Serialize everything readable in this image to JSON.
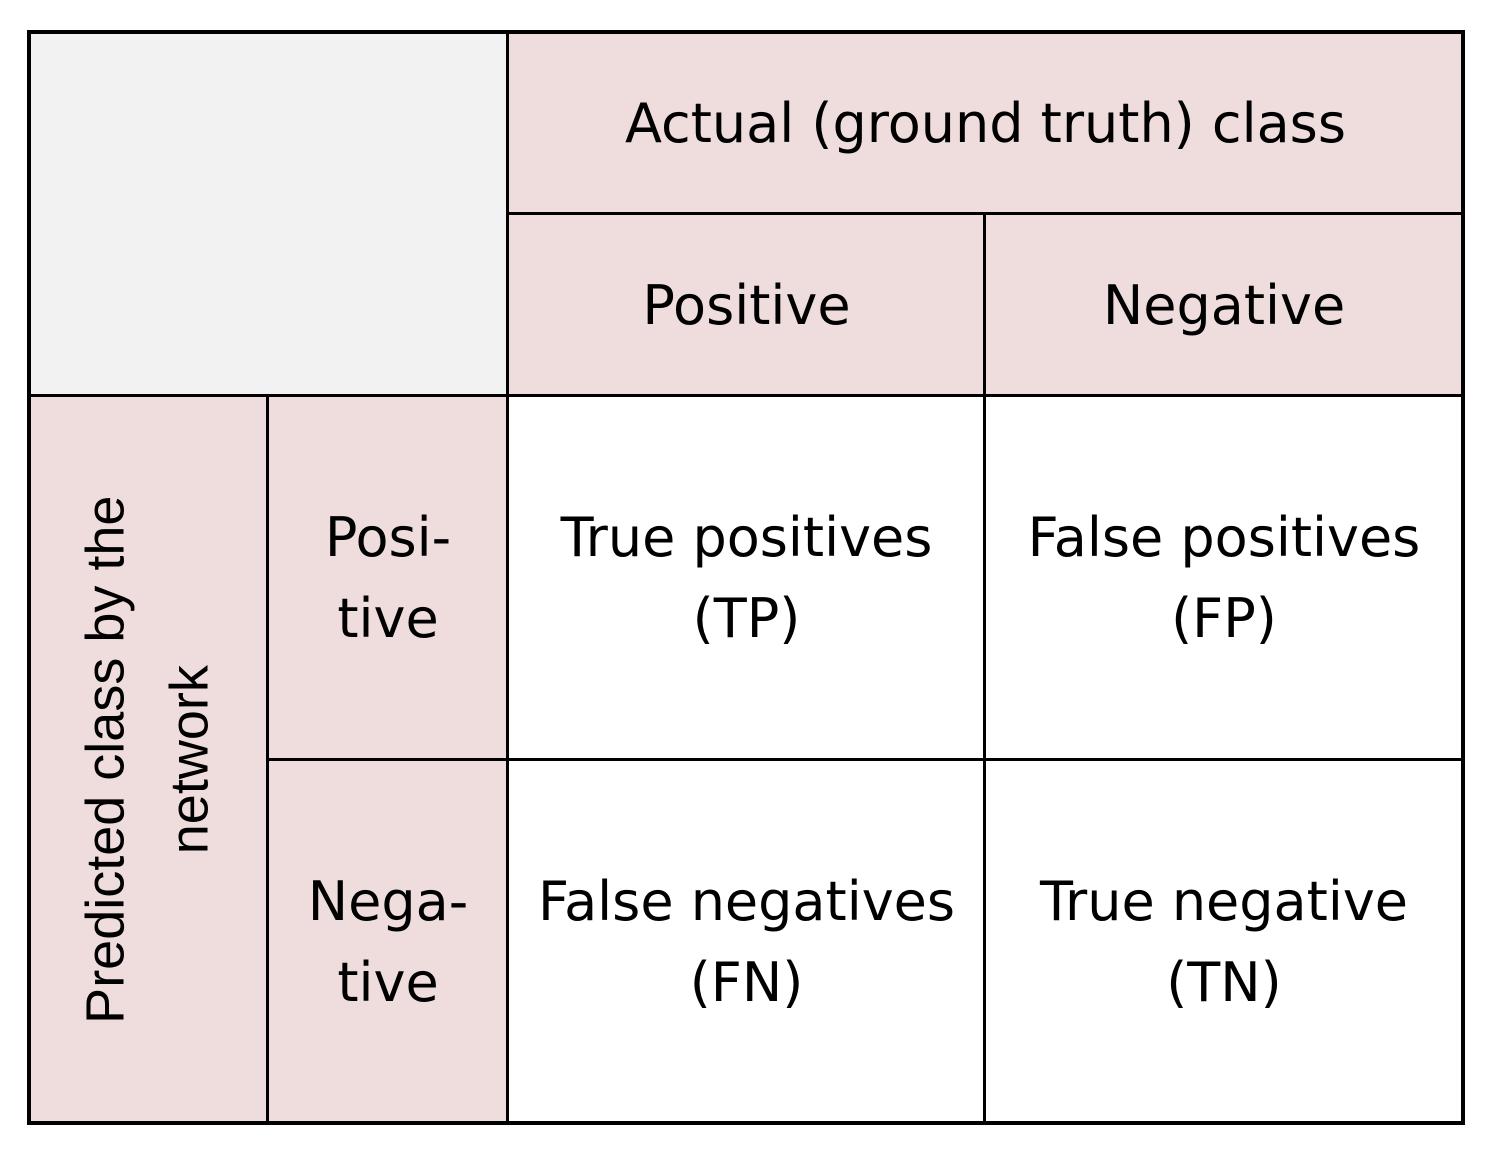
{
  "header": {
    "actual_class": "Actual (ground truth) class",
    "actual_positive": "Positive",
    "actual_negative": "Negative"
  },
  "rows": {
    "predicted_class_line1": "Predicted class by the",
    "predicted_class_line2": "network",
    "predicted_positive_line1": "Posi-",
    "predicted_positive_line2": "tive",
    "predicted_negative_line1": "Nega-",
    "predicted_negative_line2": "tive"
  },
  "cells": {
    "tp_line1": "True positives",
    "tp_line2": "(TP)",
    "fp_line1": "False positives",
    "fp_line2": "(FP)",
    "fn_line1": "False negatives",
    "fn_line2": "(FN)",
    "tn_line1": "True negative",
    "tn_line2": "(TN)"
  },
  "colors": {
    "header_fill": "#efdcdc",
    "corner_fill": "#f2f2f2",
    "cell_fill": "#ffffff",
    "grid_line": "#000000"
  }
}
